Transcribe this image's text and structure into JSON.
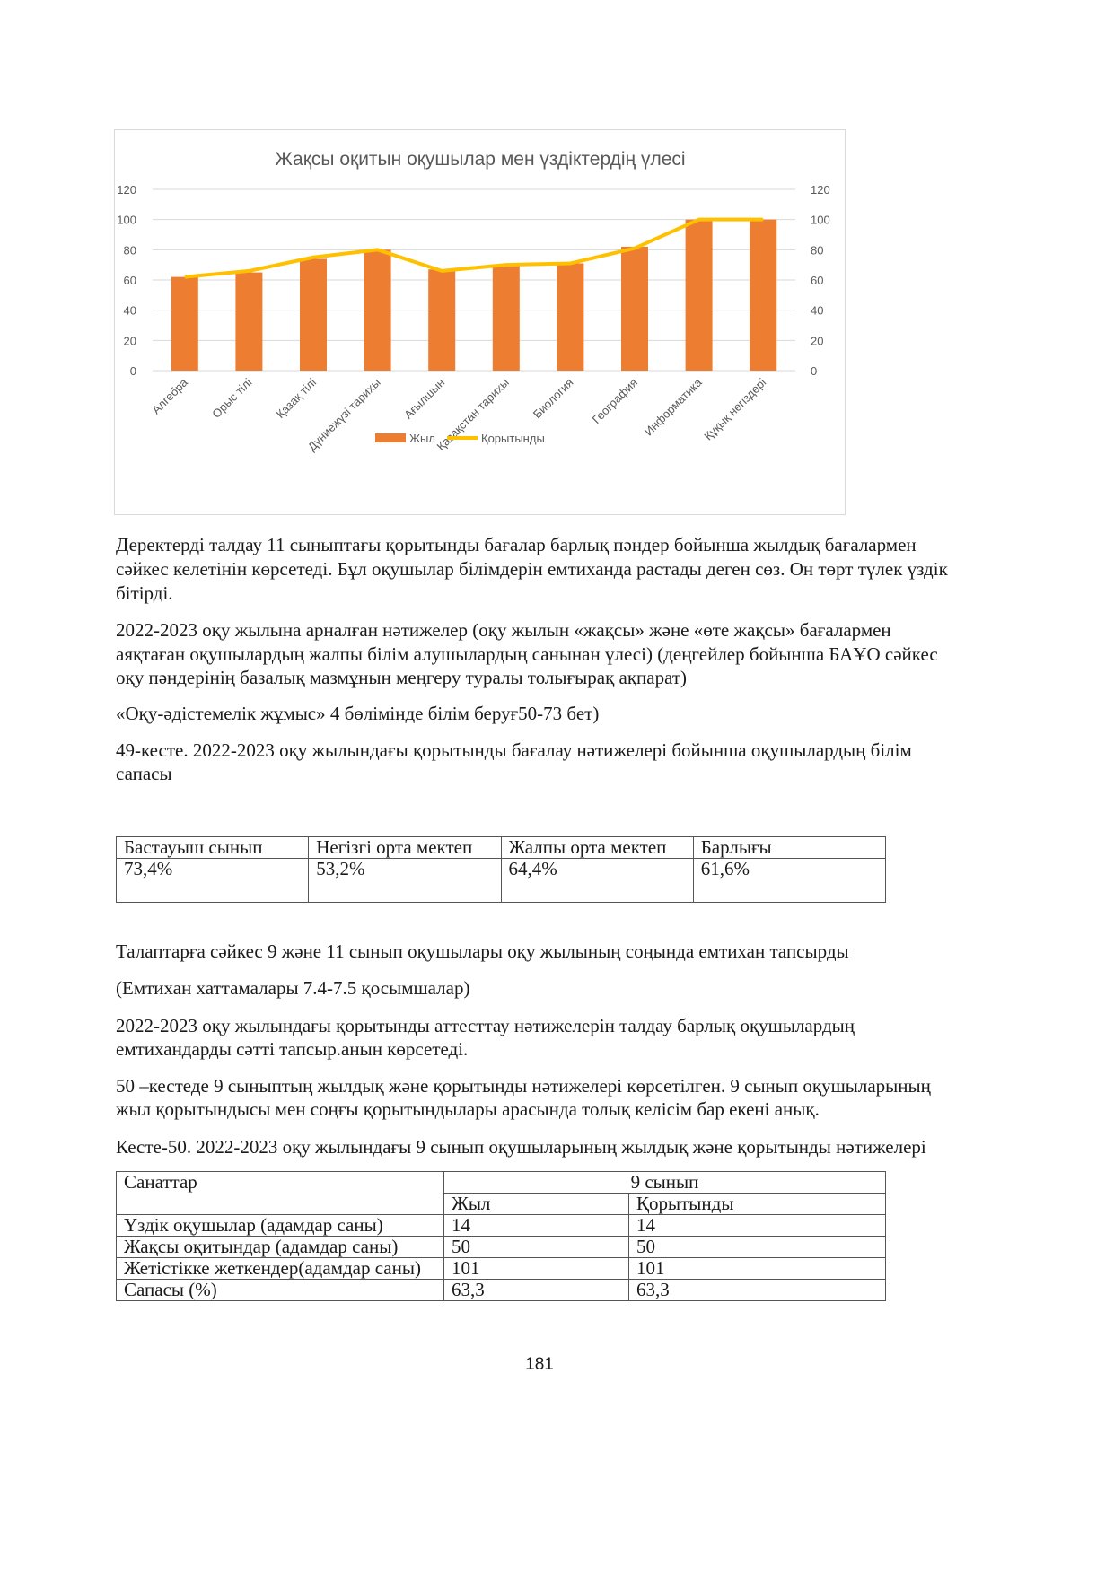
{
  "chart_data": {
    "type": "bar+line",
    "title": "Жақсы оқитын оқушылар мен үздіктердің үлесі",
    "categories": [
      "Алгебра",
      "Орыс тілі",
      "Қазақ тілі",
      "Дүниежүзі тарихы",
      "Ағылшын",
      "Қазақстан тарихы",
      "Биология",
      "География",
      "Информатика",
      "Құқық негіздері"
    ],
    "series": [
      {
        "name": "Жыл",
        "type": "bar",
        "color": "#ED7D31",
        "values": [
          62,
          65,
          74,
          80,
          67,
          70,
          71,
          82,
          100,
          100
        ]
      },
      {
        "name": "Қорытынды",
        "type": "line",
        "color": "#FFC000",
        "values": [
          62,
          66,
          75,
          80,
          66,
          70,
          71,
          81,
          100,
          100
        ]
      }
    ],
    "ylim": [
      0,
      120
    ],
    "yticks": [
      "0",
      "20",
      "40",
      "60",
      "80",
      "100",
      "120"
    ],
    "secondary_yticks": [
      "0",
      "20",
      "40",
      "60",
      "80",
      "100",
      "120"
    ],
    "grid": true,
    "legend": "bottom"
  },
  "paragraphs": [
    [
      "Деректерді талдау 11 сыныптағы қорытынды бағалар барлық пәндер бойынша жылдық бағалармен",
      "сәйкес келетінін көрсетеді. Бұл оқушылар білімдерін емтиханда растады деген сөз. Он төрт түлек үздік",
      "бітірді."
    ],
    [
      "2022-2023 оқу жылына арналған нәтижелер (оқу жылын «жақсы» және «өте жақсы» бағалармен",
      "аяқтаған оқушылардың жалпы білім алушылардың санынан үлесі) (деңгейлер бойынша БАҰО сәйкес",
      "оқу пәндерінің базалық мазмұнын меңгеру туралы толығырақ ақпарат)"
    ],
    [
      "«Оқу-әдістемелік жұмыс» 4 бөлімінде білім беруғ50-73 бет)"
    ],
    [
      "49-кесте. 2022-2023 оқу жылындағы қорытынды бағалау нәтижелері бойынша оқушылардың білім",
      "сапасы"
    ],
    [
      "Талаптарға сәйкес 9 және 11 сынып оқушылары оқу жылының соңында емтихан тапсырды"
    ],
    [
      "(Емтихан хаттамалары 7.4-7.5 қосымшалар)"
    ],
    [
      "2022-2023 оқу жылындағы қорытынды аттесттау нәтижелерін талдау барлық оқушылардың",
      "емтихандарды сәтті тапсыр.анын көрсетеді."
    ],
    [
      "50 –кестеде 9 сыныптың жылдық және қорытынды нәтижелері көрсетілген. 9 сынып оқушыларының",
      "жыл қорытындысы мен соңғы қорытындылары арасында толық келісім бар екені анық."
    ],
    [
      "Кесте-50. 2022-2023 оқу жылындағы 9 сынып оқушыларының жылдық және қорытынды нәтижелері"
    ]
  ],
  "table49": {
    "headers": [
      "Бастауыш сынып",
      "Негізгі орта мектеп",
      "Жалпы орта мектеп",
      "Барлығы"
    ],
    "values": [
      "73,4%",
      "53,2%",
      "64,4%",
      "61,6%"
    ]
  },
  "table50": {
    "col0_header": "Санаттар",
    "group_header": "9 сынып",
    "sub_headers": [
      "Жыл",
      "Қорытынды"
    ],
    "rows": [
      [
        "Үздік оқушылар (адамдар саны)",
        "14",
        "14"
      ],
      [
        "Жақсы оқитындар (адамдар саны)",
        "50",
        "50"
      ],
      [
        "Жетістікке жеткендер(адамдар саны)",
        "101",
        "101"
      ],
      [
        "Сапасы (%)",
        "63,3",
        "63,3"
      ]
    ]
  },
  "page_number": "181"
}
